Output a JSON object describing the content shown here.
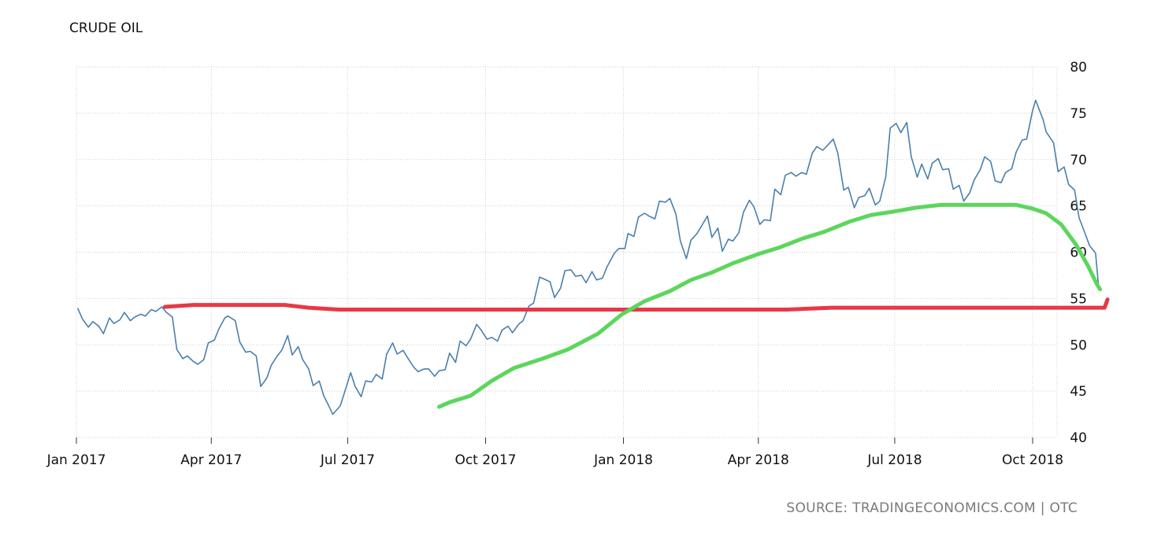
{
  "chart_data": {
    "type": "line",
    "title": "CRUDE OIL",
    "source": "SOURCE: TRADINGECONOMICS.COM | OTC",
    "x_ticks": [
      "Jan 2017",
      "Apr 2017",
      "Jul 2017",
      "Oct 2017",
      "Jan 2018",
      "Apr 2018",
      "Jul 2018",
      "Oct 2018"
    ],
    "y_ticks": [
      40,
      45,
      50,
      55,
      60,
      65,
      70,
      75,
      80
    ],
    "ylim": [
      40,
      80
    ],
    "xlim": [
      "2017-01-01",
      "2018-11-20"
    ],
    "grid": true,
    "y_axis_position": "right",
    "series": [
      {
        "color": "#4a7fad",
        "points": [
          [
            "2017-01-02",
            53.9
          ],
          [
            "2017-01-05",
            52.8
          ],
          [
            "2017-01-09",
            51.9
          ],
          [
            "2017-01-12",
            52.5
          ],
          [
            "2017-01-16",
            52.0
          ],
          [
            "2017-01-19",
            51.2
          ],
          [
            "2017-01-23",
            52.9
          ],
          [
            "2017-01-26",
            52.3
          ],
          [
            "2017-01-30",
            52.7
          ],
          [
            "2017-02-02",
            53.5
          ],
          [
            "2017-02-06",
            52.6
          ],
          [
            "2017-02-09",
            53.0
          ],
          [
            "2017-02-13",
            53.3
          ],
          [
            "2017-02-16",
            53.1
          ],
          [
            "2017-02-20",
            53.8
          ],
          [
            "2017-02-23",
            53.6
          ],
          [
            "2017-02-27",
            54.1
          ],
          [
            "2017-03-02",
            53.5
          ],
          [
            "2017-03-06",
            53.0
          ],
          [
            "2017-03-09",
            49.5
          ],
          [
            "2017-03-13",
            48.5
          ],
          [
            "2017-03-16",
            48.8
          ],
          [
            "2017-03-20",
            48.2
          ],
          [
            "2017-03-23",
            47.9
          ],
          [
            "2017-03-27",
            48.4
          ],
          [
            "2017-03-30",
            50.2
          ],
          [
            "2017-04-03",
            50.5
          ],
          [
            "2017-04-06",
            51.7
          ],
          [
            "2017-04-10",
            52.9
          ],
          [
            "2017-04-12",
            53.1
          ],
          [
            "2017-04-17",
            52.6
          ],
          [
            "2017-04-20",
            50.3
          ],
          [
            "2017-04-24",
            49.2
          ],
          [
            "2017-04-27",
            49.3
          ],
          [
            "2017-05-01",
            48.8
          ],
          [
            "2017-05-04",
            45.5
          ],
          [
            "2017-05-08",
            46.4
          ],
          [
            "2017-05-11",
            47.8
          ],
          [
            "2017-05-15",
            48.8
          ],
          [
            "2017-05-18",
            49.4
          ],
          [
            "2017-05-22",
            51.0
          ],
          [
            "2017-05-25",
            48.9
          ],
          [
            "2017-05-29",
            49.8
          ],
          [
            "2017-06-01",
            48.4
          ],
          [
            "2017-06-05",
            47.4
          ],
          [
            "2017-06-08",
            45.6
          ],
          [
            "2017-06-12",
            46.1
          ],
          [
            "2017-06-15",
            44.5
          ],
          [
            "2017-06-19",
            43.2
          ],
          [
            "2017-06-21",
            42.5
          ],
          [
            "2017-06-26",
            43.4
          ],
          [
            "2017-06-29",
            44.9
          ],
          [
            "2017-07-03",
            47.0
          ],
          [
            "2017-07-06",
            45.5
          ],
          [
            "2017-07-10",
            44.4
          ],
          [
            "2017-07-13",
            46.1
          ],
          [
            "2017-07-17",
            46.0
          ],
          [
            "2017-07-20",
            46.8
          ],
          [
            "2017-07-24",
            46.3
          ],
          [
            "2017-07-27",
            49.0
          ],
          [
            "2017-07-31",
            50.2
          ],
          [
            "2017-08-03",
            49.0
          ],
          [
            "2017-08-07",
            49.4
          ],
          [
            "2017-08-10",
            48.6
          ],
          [
            "2017-08-14",
            47.6
          ],
          [
            "2017-08-17",
            47.1
          ],
          [
            "2017-08-21",
            47.4
          ],
          [
            "2017-08-24",
            47.4
          ],
          [
            "2017-08-28",
            46.6
          ],
          [
            "2017-08-31",
            47.2
          ],
          [
            "2017-09-04",
            47.3
          ],
          [
            "2017-09-07",
            49.1
          ],
          [
            "2017-09-11",
            48.1
          ],
          [
            "2017-09-14",
            50.4
          ],
          [
            "2017-09-18",
            49.9
          ],
          [
            "2017-09-21",
            50.6
          ],
          [
            "2017-09-25",
            52.2
          ],
          [
            "2017-09-28",
            51.6
          ],
          [
            "2017-10-02",
            50.6
          ],
          [
            "2017-10-05",
            50.8
          ],
          [
            "2017-10-09",
            50.4
          ],
          [
            "2017-10-12",
            51.6
          ],
          [
            "2017-10-16",
            52.0
          ],
          [
            "2017-10-19",
            51.3
          ],
          [
            "2017-10-23",
            52.2
          ],
          [
            "2017-10-26",
            52.6
          ],
          [
            "2017-10-30",
            54.2
          ],
          [
            "2017-11-02",
            54.5
          ],
          [
            "2017-11-06",
            57.3
          ],
          [
            "2017-11-09",
            57.1
          ],
          [
            "2017-11-13",
            56.8
          ],
          [
            "2017-11-16",
            55.1
          ],
          [
            "2017-11-20",
            56.1
          ],
          [
            "2017-11-23",
            58.0
          ],
          [
            "2017-11-27",
            58.1
          ],
          [
            "2017-11-30",
            57.4
          ],
          [
            "2017-12-04",
            57.5
          ],
          [
            "2017-12-07",
            56.7
          ],
          [
            "2017-12-11",
            57.9
          ],
          [
            "2017-12-14",
            57.0
          ],
          [
            "2017-12-18",
            57.2
          ],
          [
            "2017-12-21",
            58.4
          ],
          [
            "2017-12-26",
            59.9
          ],
          [
            "2017-12-29",
            60.4
          ],
          [
            "2018-01-02",
            60.4
          ],
          [
            "2018-01-04",
            62.0
          ],
          [
            "2018-01-08",
            61.7
          ],
          [
            "2018-01-11",
            63.8
          ],
          [
            "2018-01-15",
            64.2
          ],
          [
            "2018-01-18",
            63.9
          ],
          [
            "2018-01-22",
            63.6
          ],
          [
            "2018-01-25",
            65.5
          ],
          [
            "2018-01-29",
            65.4
          ],
          [
            "2018-02-01",
            65.8
          ],
          [
            "2018-02-05",
            64.1
          ],
          [
            "2018-02-08",
            61.2
          ],
          [
            "2018-02-12",
            59.3
          ],
          [
            "2018-02-15",
            61.3
          ],
          [
            "2018-02-19",
            62.0
          ],
          [
            "2018-02-22",
            62.8
          ],
          [
            "2018-02-26",
            63.9
          ],
          [
            "2018-03-01",
            61.6
          ],
          [
            "2018-03-05",
            62.6
          ],
          [
            "2018-03-08",
            60.1
          ],
          [
            "2018-03-12",
            61.4
          ],
          [
            "2018-03-15",
            61.2
          ],
          [
            "2018-03-19",
            62.1
          ],
          [
            "2018-03-22",
            64.3
          ],
          [
            "2018-03-26",
            65.6
          ],
          [
            "2018-03-29",
            64.9
          ],
          [
            "2018-04-02",
            63.0
          ],
          [
            "2018-04-05",
            63.5
          ],
          [
            "2018-04-09",
            63.4
          ],
          [
            "2018-04-12",
            66.8
          ],
          [
            "2018-04-16",
            66.2
          ],
          [
            "2018-04-19",
            68.3
          ],
          [
            "2018-04-23",
            68.6
          ],
          [
            "2018-04-26",
            68.2
          ],
          [
            "2018-04-30",
            68.6
          ],
          [
            "2018-05-03",
            68.4
          ],
          [
            "2018-05-07",
            70.7
          ],
          [
            "2018-05-10",
            71.4
          ],
          [
            "2018-05-14",
            71.0
          ],
          [
            "2018-05-17",
            71.5
          ],
          [
            "2018-05-21",
            72.2
          ],
          [
            "2018-05-24",
            70.7
          ],
          [
            "2018-05-28",
            66.7
          ],
          [
            "2018-05-31",
            67.0
          ],
          [
            "2018-06-04",
            64.8
          ],
          [
            "2018-06-07",
            65.9
          ],
          [
            "2018-06-11",
            66.1
          ],
          [
            "2018-06-14",
            66.9
          ],
          [
            "2018-06-18",
            65.1
          ],
          [
            "2018-06-21",
            65.5
          ],
          [
            "2018-06-25",
            68.1
          ],
          [
            "2018-06-28",
            73.4
          ],
          [
            "2018-07-02",
            73.9
          ],
          [
            "2018-07-05",
            72.9
          ],
          [
            "2018-07-09",
            74.0
          ],
          [
            "2018-07-12",
            70.3
          ],
          [
            "2018-07-16",
            68.1
          ],
          [
            "2018-07-19",
            69.5
          ],
          [
            "2018-07-23",
            67.9
          ],
          [
            "2018-07-26",
            69.6
          ],
          [
            "2018-07-30",
            70.1
          ],
          [
            "2018-08-02",
            68.9
          ],
          [
            "2018-08-06",
            69.0
          ],
          [
            "2018-08-09",
            66.8
          ],
          [
            "2018-08-13",
            67.2
          ],
          [
            "2018-08-16",
            65.5
          ],
          [
            "2018-08-20",
            66.4
          ],
          [
            "2018-08-23",
            67.8
          ],
          [
            "2018-08-27",
            68.9
          ],
          [
            "2018-08-30",
            70.3
          ],
          [
            "2018-09-03",
            69.8
          ],
          [
            "2018-09-06",
            67.7
          ],
          [
            "2018-09-10",
            67.5
          ],
          [
            "2018-09-13",
            68.6
          ],
          [
            "2018-09-17",
            69.0
          ],
          [
            "2018-09-20",
            70.8
          ],
          [
            "2018-09-24",
            72.1
          ],
          [
            "2018-09-27",
            72.2
          ],
          [
            "2018-10-01",
            75.3
          ],
          [
            "2018-10-03",
            76.4
          ],
          [
            "2018-10-08",
            74.3
          ],
          [
            "2018-10-10",
            73.0
          ],
          [
            "2018-10-15",
            71.8
          ],
          [
            "2018-10-18",
            68.7
          ],
          [
            "2018-10-22",
            69.2
          ],
          [
            "2018-10-25",
            67.3
          ],
          [
            "2018-10-29",
            66.7
          ],
          [
            "2018-11-01",
            63.7
          ],
          [
            "2018-11-05",
            62.0
          ],
          [
            "2018-11-08",
            60.7
          ],
          [
            "2018-11-12",
            59.9
          ],
          [
            "2018-11-14",
            56.3
          ]
        ]
      },
      {
        "color": "#e63946",
        "points": [
          [
            "2017-03-01",
            54.1
          ],
          [
            "2017-03-20",
            54.3
          ],
          [
            "2017-04-15",
            54.3
          ],
          [
            "2017-05-20",
            54.3
          ],
          [
            "2017-06-05",
            54.0
          ],
          [
            "2017-06-25",
            53.8
          ],
          [
            "2017-08-15",
            53.8
          ],
          [
            "2017-11-01",
            53.8
          ],
          [
            "2018-01-01",
            53.8
          ],
          [
            "2018-03-01",
            53.8
          ],
          [
            "2018-04-20",
            53.8
          ],
          [
            "2018-05-20",
            54.0
          ],
          [
            "2018-07-01",
            54.0
          ],
          [
            "2018-09-01",
            54.0
          ],
          [
            "2018-10-15",
            54.0
          ],
          [
            "2018-11-18",
            54.0
          ],
          [
            "2018-11-20",
            54.9
          ]
        ]
      },
      {
        "color": "#5cd65c",
        "points": [
          [
            "2017-08-31",
            43.3
          ],
          [
            "2017-09-07",
            43.8
          ],
          [
            "2017-09-21",
            44.5
          ],
          [
            "2017-10-05",
            46.1
          ],
          [
            "2017-10-20",
            47.5
          ],
          [
            "2017-11-08",
            48.5
          ],
          [
            "2017-11-25",
            49.5
          ],
          [
            "2017-12-15",
            51.2
          ],
          [
            "2017-12-31",
            53.3
          ],
          [
            "2018-01-15",
            54.7
          ],
          [
            "2018-02-01",
            55.8
          ],
          [
            "2018-02-15",
            57.0
          ],
          [
            "2018-03-01",
            57.8
          ],
          [
            "2018-03-15",
            58.8
          ],
          [
            "2018-04-01",
            59.8
          ],
          [
            "2018-04-15",
            60.5
          ],
          [
            "2018-05-01",
            61.5
          ],
          [
            "2018-05-15",
            62.2
          ],
          [
            "2018-06-01",
            63.3
          ],
          [
            "2018-06-15",
            64.0
          ],
          [
            "2018-07-01",
            64.4
          ],
          [
            "2018-07-15",
            64.8
          ],
          [
            "2018-08-01",
            65.1
          ],
          [
            "2018-08-15",
            65.1
          ],
          [
            "2018-09-01",
            65.1
          ],
          [
            "2018-09-20",
            65.1
          ],
          [
            "2018-10-01",
            64.7
          ],
          [
            "2018-10-10",
            64.2
          ],
          [
            "2018-10-20",
            63.0
          ],
          [
            "2018-10-30",
            60.8
          ],
          [
            "2018-11-07",
            58.5
          ],
          [
            "2018-11-13",
            56.5
          ],
          [
            "2018-11-15",
            56.0
          ]
        ]
      }
    ]
  }
}
